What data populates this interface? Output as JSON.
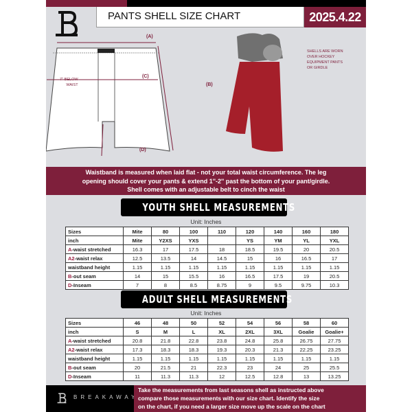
{
  "header": {
    "title": "PANTS SHELL SIZE CHART",
    "date": "2025.4.22"
  },
  "diagram": {
    "label_a": "(A)",
    "label_b": "(B)",
    "label_c": "(C)",
    "label_d": "(D)",
    "below_waist": [
      "7'' BELOW",
      "WAIST"
    ],
    "note": [
      "SHELLS ARE WORN",
      "OVER HOCKEY",
      "EQUIPMENT PANTS",
      "OR GIRDLE"
    ]
  },
  "banner": {
    "lines": [
      "Waistband is measured when laid flat - not your total waist circumference. The leg",
      "opening should cover your pants & extend 1''-2'' past the bottom of your pant/girdle.",
      "Shell comes with an adjustable belt to cinch the waist"
    ]
  },
  "youth": {
    "title": "YOUTH SHELL MEASUREMENTS",
    "unit": "Unit: Inches",
    "rows": [
      {
        "label": "Sizes",
        "prefix": "",
        "values": [
          "Mite",
          "80",
          "100",
          "110",
          "120",
          "140",
          "160",
          "180"
        ]
      },
      {
        "label": "inch",
        "prefix": "",
        "values": [
          "Mite",
          "Y2XS",
          "YXS",
          "",
          "YS",
          "YM",
          "YL",
          "YXL"
        ]
      },
      {
        "label": "-waist stretched",
        "prefix": "A",
        "values": [
          "16.3",
          "17",
          "17.5",
          "18",
          "18.5",
          "19.5",
          "20",
          "20.5"
        ]
      },
      {
        "label": "-waist relax",
        "prefix": "A2",
        "values": [
          "12.5",
          "13.5",
          "14",
          "14.5",
          "15",
          "16",
          "16.5",
          "17"
        ]
      },
      {
        "label": "waistband height",
        "prefix": "",
        "values": [
          "1.15",
          "1.15",
          "1.15",
          "1.15",
          "1.15",
          "1.15",
          "1.15",
          "1.15"
        ]
      },
      {
        "label": "-out seam",
        "prefix": "B",
        "values": [
          "14",
          "15",
          "15.5",
          "16",
          "16.5",
          "17.5",
          "19",
          "20.5"
        ]
      },
      {
        "label": "-Inseam",
        "prefix": "D",
        "values": [
          "7",
          "8",
          "8.5",
          "8.75",
          "9",
          "9.5",
          "9.75",
          "10.3"
        ]
      }
    ]
  },
  "adult": {
    "title": "ADULT SHELL MEASUREMENTS",
    "unit": "Unit: Inches",
    "rows": [
      {
        "label": "Sizes",
        "prefix": "",
        "values": [
          "46",
          "48",
          "50",
          "52",
          "54",
          "56",
          "58",
          "60"
        ]
      },
      {
        "label": "inch",
        "prefix": "",
        "values": [
          "S",
          "M",
          "L",
          "XL",
          "2XL",
          "3XL",
          "Goalie",
          "Goalie+"
        ]
      },
      {
        "label": "-waist stretched",
        "prefix": "A",
        "values": [
          "20.8",
          "21.8",
          "22.8",
          "23.8",
          "24.8",
          "25.8",
          "26.75",
          "27.75"
        ]
      },
      {
        "label": "-waist relax",
        "prefix": "A2",
        "values": [
          "17.3",
          "18.3",
          "18.3",
          "19.3",
          "20.3",
          "21.3",
          "22.25",
          "23.25"
        ]
      },
      {
        "label": "waistband height",
        "prefix": "",
        "values": [
          "1.15",
          "1.15",
          "1.15",
          "1.15",
          "1.15",
          "1.15",
          "1.15",
          "1.15"
        ]
      },
      {
        "label": "-out seam",
        "prefix": "B",
        "values": [
          "20",
          "21.5",
          "21",
          "22.3",
          "23",
          "24",
          "25",
          "25.5"
        ]
      },
      {
        "label": "-Inseam",
        "prefix": "D",
        "values": [
          "11",
          "11.3",
          "11.3",
          "12",
          "12.5",
          "12.8",
          "13",
          "13.25"
        ]
      }
    ]
  },
  "footer": {
    "brand": "BREAKAWAY",
    "lines": [
      "Take the measurements from last seasons shell as instructed above",
      "compare those measurements  with our size chart. Identify the size",
      "on the chart, if you need a larger size move up the scale on the chart"
    ]
  },
  "colors": {
    "accent": "#7e1f3b",
    "background": "#dcdde1"
  }
}
